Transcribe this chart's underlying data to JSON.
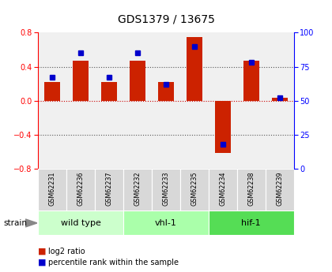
{
  "title": "GDS1379 / 13675",
  "samples": [
    "GSM62231",
    "GSM62236",
    "GSM62237",
    "GSM62232",
    "GSM62233",
    "GSM62235",
    "GSM62234",
    "GSM62238",
    "GSM62239"
  ],
  "log2_ratio": [
    0.22,
    0.47,
    0.22,
    0.47,
    0.22,
    0.75,
    -0.62,
    0.47,
    0.03
  ],
  "percentile_rank": [
    67,
    85,
    67,
    85,
    62,
    90,
    18,
    78,
    52
  ],
  "groups": [
    {
      "label": "wild type",
      "start": 0,
      "end": 3,
      "color": "#ccffcc"
    },
    {
      "label": "vhl-1",
      "start": 3,
      "end": 6,
      "color": "#aaffaa"
    },
    {
      "label": "hif-1",
      "start": 6,
      "end": 9,
      "color": "#55dd55"
    }
  ],
  "ylim_left": [
    -0.8,
    0.8
  ],
  "ylim_right": [
    0,
    100
  ],
  "yticks_left": [
    -0.8,
    -0.4,
    0.0,
    0.4,
    0.8
  ],
  "yticks_right": [
    0,
    25,
    50,
    75,
    100
  ],
  "bar_color": "#cc2200",
  "dot_color": "#0000cc",
  "grid_color": "#555555",
  "zero_line_color": "#cc0000",
  "background_color": "#ffffff",
  "plot_bg_color": "#f0f0f0",
  "strain_label": "strain",
  "legend_log2": "log2 ratio",
  "legend_pct": "percentile rank within the sample"
}
